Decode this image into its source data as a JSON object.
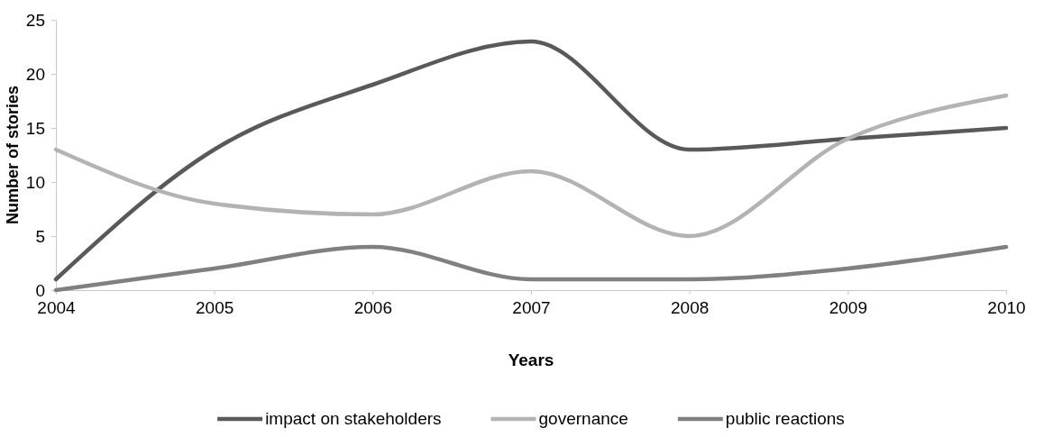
{
  "chart_data": {
    "type": "line",
    "xlabel": "Years",
    "ylabel": "Number of stories",
    "x": [
      2004,
      2005,
      2006,
      2007,
      2008,
      2009,
      2010
    ],
    "xlim": [
      2004,
      2010
    ],
    "xticks": [
      2004,
      2005,
      2006,
      2007,
      2008,
      2009,
      2010
    ],
    "ylim": [
      0,
      25
    ],
    "yticks": [
      0,
      5,
      10,
      15,
      20,
      25
    ],
    "grid": false,
    "legend": "bottom",
    "marker": "none",
    "line_style": "solid",
    "series": [
      {
        "name": "impact on stakeholders",
        "color": "#595959",
        "values": [
          1,
          13,
          19,
          23,
          13,
          14,
          15
        ]
      },
      {
        "name": "governance",
        "color": "#b3b3b3",
        "values": [
          13,
          8,
          7,
          11,
          5,
          14,
          18
        ]
      },
      {
        "name": "public reactions",
        "color": "#808080",
        "values": [
          0,
          2,
          4,
          1,
          1,
          2,
          4
        ]
      }
    ]
  }
}
